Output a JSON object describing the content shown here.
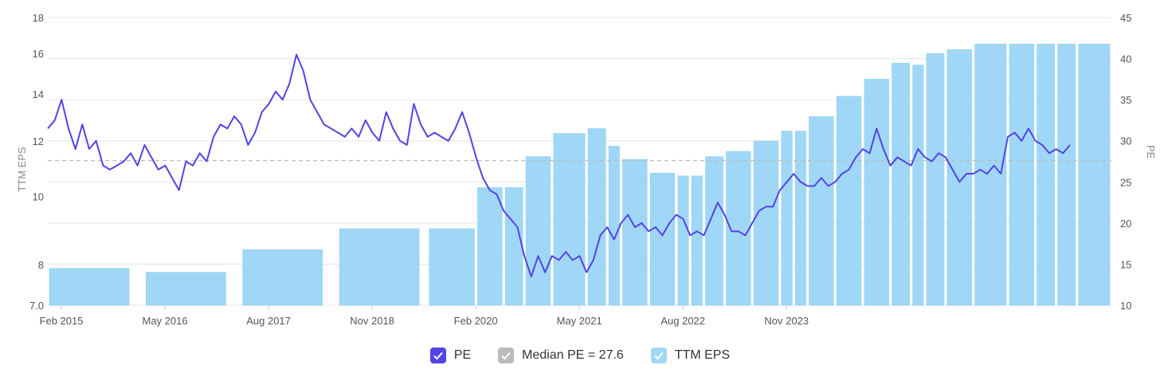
{
  "chart_data": {
    "type": "bar+line",
    "x_ticks": [
      "Feb 2015",
      "May 2016",
      "Aug 2017",
      "Nov 2018",
      "Feb 2020",
      "May 2021",
      "Aug 2022",
      "Nov 2023"
    ],
    "y_left": {
      "label": "TTM EPS",
      "ticks": [
        "7.0",
        "8",
        "10",
        "12",
        "14",
        "16",
        "18"
      ],
      "range": [
        7,
        18
      ],
      "scale": "log"
    },
    "y_right": {
      "label": "PE",
      "ticks": [
        "10",
        "15",
        "20",
        "25",
        "30",
        "35",
        "40",
        "45"
      ],
      "range": [
        10,
        45
      ]
    },
    "median_pe": 27.6,
    "eps_bars": [
      {
        "start": "2015-02",
        "end": "2016-02",
        "value": 7.9
      },
      {
        "start": "2016-04",
        "end": "2017-04",
        "value": 7.8
      },
      {
        "start": "2017-06",
        "end": "2018-06",
        "value": 8.4
      },
      {
        "start": "2018-08",
        "end": "2019-08",
        "value": 9.0
      },
      {
        "start": "2019-09",
        "end": "2020-04",
        "value": 9.0
      },
      {
        "start": "2020-04",
        "end": "2020-08",
        "value": 10.3
      },
      {
        "start": "2020-08",
        "end": "2020-11",
        "value": 10.3
      },
      {
        "start": "2020-11",
        "end": "2021-03",
        "value": 11.4
      },
      {
        "start": "2021-03",
        "end": "2021-08",
        "value": 12.3
      },
      {
        "start": "2021-08",
        "end": "2021-11",
        "value": 12.5
      },
      {
        "start": "2021-11",
        "end": "2022-01",
        "value": 11.8
      },
      {
        "start": "2022-01",
        "end": "2022-05",
        "value": 11.3
      },
      {
        "start": "2022-05",
        "end": "2022-09",
        "value": 10.8
      },
      {
        "start": "2022-09",
        "end": "2022-11",
        "value": 10.7
      },
      {
        "start": "2022-11",
        "end": "2023-01",
        "value": 10.7
      },
      {
        "start": "2023-01",
        "end": "2023-04",
        "value": 11.4
      },
      {
        "start": "2023-04",
        "end": "2023-08",
        "value": 11.6
      },
      {
        "start": "2023-08",
        "end": "2023-12",
        "value": 12.0
      },
      {
        "start": "2023-12",
        "end": "2024-02",
        "value": 12.4
      },
      {
        "start": "2024-02",
        "end": "2024-04",
        "value": 12.4
      },
      {
        "start": "2024-04",
        "end": "2024-08",
        "value": 13.0
      },
      {
        "start": "2024-08",
        "end": "2024-12",
        "value": 13.9
      },
      {
        "start": "2024-12",
        "end": "2025-04",
        "value": 14.7
      },
      {
        "start": "2025-04",
        "end": "2025-07",
        "value": 15.5
      },
      {
        "start": "2025-07",
        "end": "2025-09",
        "value": 15.4
      },
      {
        "start": "2025-09",
        "end": "2025-12",
        "value": 16.0
      },
      {
        "start": "2025-12",
        "end": "2026-04",
        "value": 16.2
      },
      {
        "start": "2026-04",
        "end": "2026-09",
        "value": 16.5
      },
      {
        "start": "2026-09",
        "end": "2027-01",
        "value": 16.5
      },
      {
        "start": "2027-01",
        "end": "2027-04",
        "value": 16.5
      },
      {
        "start": "2027-04",
        "end": "2027-07",
        "value": 16.5
      },
      {
        "start": "2027-07",
        "end": "2027-12",
        "value": 16.5
      }
    ],
    "pe_series": [
      [
        "2015-02",
        31.5
      ],
      [
        "2015-03",
        32.5
      ],
      [
        "2015-04",
        35.0
      ],
      [
        "2015-05",
        31.5
      ],
      [
        "2015-06",
        29.0
      ],
      [
        "2015-07",
        32.0
      ],
      [
        "2015-08",
        29.0
      ],
      [
        "2015-09",
        30.0
      ],
      [
        "2015-10",
        27.0
      ],
      [
        "2015-11",
        26.5
      ],
      [
        "2015-12",
        27.0
      ],
      [
        "2016-01",
        27.5
      ],
      [
        "2016-02",
        28.5
      ],
      [
        "2016-03",
        27.0
      ],
      [
        "2016-04",
        29.5
      ],
      [
        "2016-05",
        28.0
      ],
      [
        "2016-06",
        26.5
      ],
      [
        "2016-07",
        27.0
      ],
      [
        "2016-08",
        25.5
      ],
      [
        "2016-09",
        24.0
      ],
      [
        "2016-10",
        27.5
      ],
      [
        "2016-11",
        27.0
      ],
      [
        "2016-12",
        28.5
      ],
      [
        "2017-01",
        27.5
      ],
      [
        "2017-02",
        30.5
      ],
      [
        "2017-03",
        32.0
      ],
      [
        "2017-04",
        31.5
      ],
      [
        "2017-05",
        33.0
      ],
      [
        "2017-06",
        32.0
      ],
      [
        "2017-07",
        29.5
      ],
      [
        "2017-08",
        31.0
      ],
      [
        "2017-09",
        33.5
      ],
      [
        "2017-10",
        34.5
      ],
      [
        "2017-11",
        36.0
      ],
      [
        "2017-12",
        35.0
      ],
      [
        "2018-01",
        37.0
      ],
      [
        "2018-02",
        40.5
      ],
      [
        "2018-03",
        38.5
      ],
      [
        "2018-04",
        35.0
      ],
      [
        "2018-05",
        33.5
      ],
      [
        "2018-06",
        32.0
      ],
      [
        "2018-07",
        31.5
      ],
      [
        "2018-08",
        31.0
      ],
      [
        "2018-09",
        30.5
      ],
      [
        "2018-10",
        31.5
      ],
      [
        "2018-11",
        30.5
      ],
      [
        "2018-12",
        32.5
      ],
      [
        "2019-01",
        31.0
      ],
      [
        "2019-02",
        30.0
      ],
      [
        "2019-03",
        33.5
      ],
      [
        "2019-04",
        31.5
      ],
      [
        "2019-05",
        30.0
      ],
      [
        "2019-06",
        29.5
      ],
      [
        "2019-07",
        34.5
      ],
      [
        "2019-08",
        32.0
      ],
      [
        "2019-09",
        30.5
      ],
      [
        "2019-10",
        31.0
      ],
      [
        "2019-11",
        30.5
      ],
      [
        "2019-12",
        30.0
      ],
      [
        "2020-01",
        31.5
      ],
      [
        "2020-02",
        33.5
      ],
      [
        "2020-03",
        31.0
      ],
      [
        "2020-04",
        28.0
      ],
      [
        "2020-05",
        25.5
      ],
      [
        "2020-06",
        24.0
      ],
      [
        "2020-07",
        23.5
      ],
      [
        "2020-08",
        21.5
      ],
      [
        "2020-09",
        20.5
      ],
      [
        "2020-10",
        19.5
      ],
      [
        "2020-11",
        16.0
      ],
      [
        "2020-12",
        13.5
      ],
      [
        "2021-01",
        16.0
      ],
      [
        "2021-02",
        14.0
      ],
      [
        "2021-03",
        16.0
      ],
      [
        "2021-04",
        15.5
      ],
      [
        "2021-05",
        16.5
      ],
      [
        "2021-06",
        15.5
      ],
      [
        "2021-07",
        16.0
      ],
      [
        "2021-08",
        14.0
      ],
      [
        "2021-09",
        15.5
      ],
      [
        "2021-10",
        18.5
      ],
      [
        "2021-11",
        19.5
      ],
      [
        "2021-12",
        18.0
      ],
      [
        "2022-01",
        20.0
      ],
      [
        "2022-02",
        21.0
      ],
      [
        "2022-03",
        19.5
      ],
      [
        "2022-04",
        20.0
      ],
      [
        "2022-05",
        19.0
      ],
      [
        "2022-06",
        19.5
      ],
      [
        "2022-07",
        18.5
      ],
      [
        "2022-08",
        20.0
      ],
      [
        "2022-09",
        21.0
      ],
      [
        "2022-10",
        20.5
      ],
      [
        "2022-11",
        18.5
      ],
      [
        "2022-12",
        19.0
      ],
      [
        "2023-01",
        18.5
      ],
      [
        "2023-02",
        20.5
      ],
      [
        "2023-03",
        22.5
      ],
      [
        "2023-04",
        21.0
      ],
      [
        "2023-05",
        19.0
      ],
      [
        "2023-06",
        19.0
      ],
      [
        "2023-07",
        18.5
      ],
      [
        "2023-08",
        20.0
      ],
      [
        "2023-09",
        21.5
      ],
      [
        "2023-10",
        22.0
      ],
      [
        "2023-11",
        22.0
      ],
      [
        "2023-12",
        24.0
      ],
      [
        "2024-01",
        25.0
      ],
      [
        "2024-02",
        26.0
      ],
      [
        "2024-03",
        25.0
      ],
      [
        "2024-04",
        24.5
      ],
      [
        "2024-05",
        24.5
      ],
      [
        "2024-06",
        25.5
      ],
      [
        "2024-07",
        24.5
      ],
      [
        "2024-08",
        25.0
      ],
      [
        "2024-09",
        26.0
      ],
      [
        "2024-10",
        26.5
      ],
      [
        "2024-11",
        28.0
      ],
      [
        "2024-12",
        29.0
      ],
      [
        "2025-01",
        28.5
      ],
      [
        "2025-02",
        31.5
      ],
      [
        "2025-03",
        29.0
      ],
      [
        "2025-04",
        27.0
      ],
      [
        "2025-05",
        28.0
      ],
      [
        "2025-06",
        27.5
      ],
      [
        "2025-07",
        27.0
      ],
      [
        "2025-08",
        29.0
      ],
      [
        "2025-09",
        28.0
      ],
      [
        "2025-10",
        27.5
      ],
      [
        "2025-11",
        28.5
      ],
      [
        "2025-12",
        28.0
      ],
      [
        "2026-01",
        26.5
      ],
      [
        "2026-02",
        25.0
      ],
      [
        "2026-03",
        26.0
      ],
      [
        "2026-04",
        26.0
      ],
      [
        "2026-05",
        26.5
      ],
      [
        "2026-06",
        26.0
      ],
      [
        "2026-07",
        27.0
      ],
      [
        "2026-08",
        26.0
      ],
      [
        "2026-09",
        30.5
      ],
      [
        "2026-10",
        31.0
      ],
      [
        "2026-11",
        30.0
      ],
      [
        "2026-12",
        31.5
      ],
      [
        "2027-01",
        30.0
      ],
      [
        "2027-02",
        29.5
      ],
      [
        "2027-03",
        28.5
      ],
      [
        "2027-04",
        29.0
      ],
      [
        "2027-05",
        28.5
      ],
      [
        "2027-06",
        29.5
      ]
    ],
    "legend": [
      "PE",
      "Median PE = 27.6",
      "TTM EPS"
    ],
    "colors": {
      "pe": "#5145e5",
      "median": "#bbbbbb",
      "eps": "#a1d7f6",
      "eps_border": "#8ccdf3",
      "grid": "#e6e6e6"
    },
    "legend_placement": "bottom-center"
  }
}
